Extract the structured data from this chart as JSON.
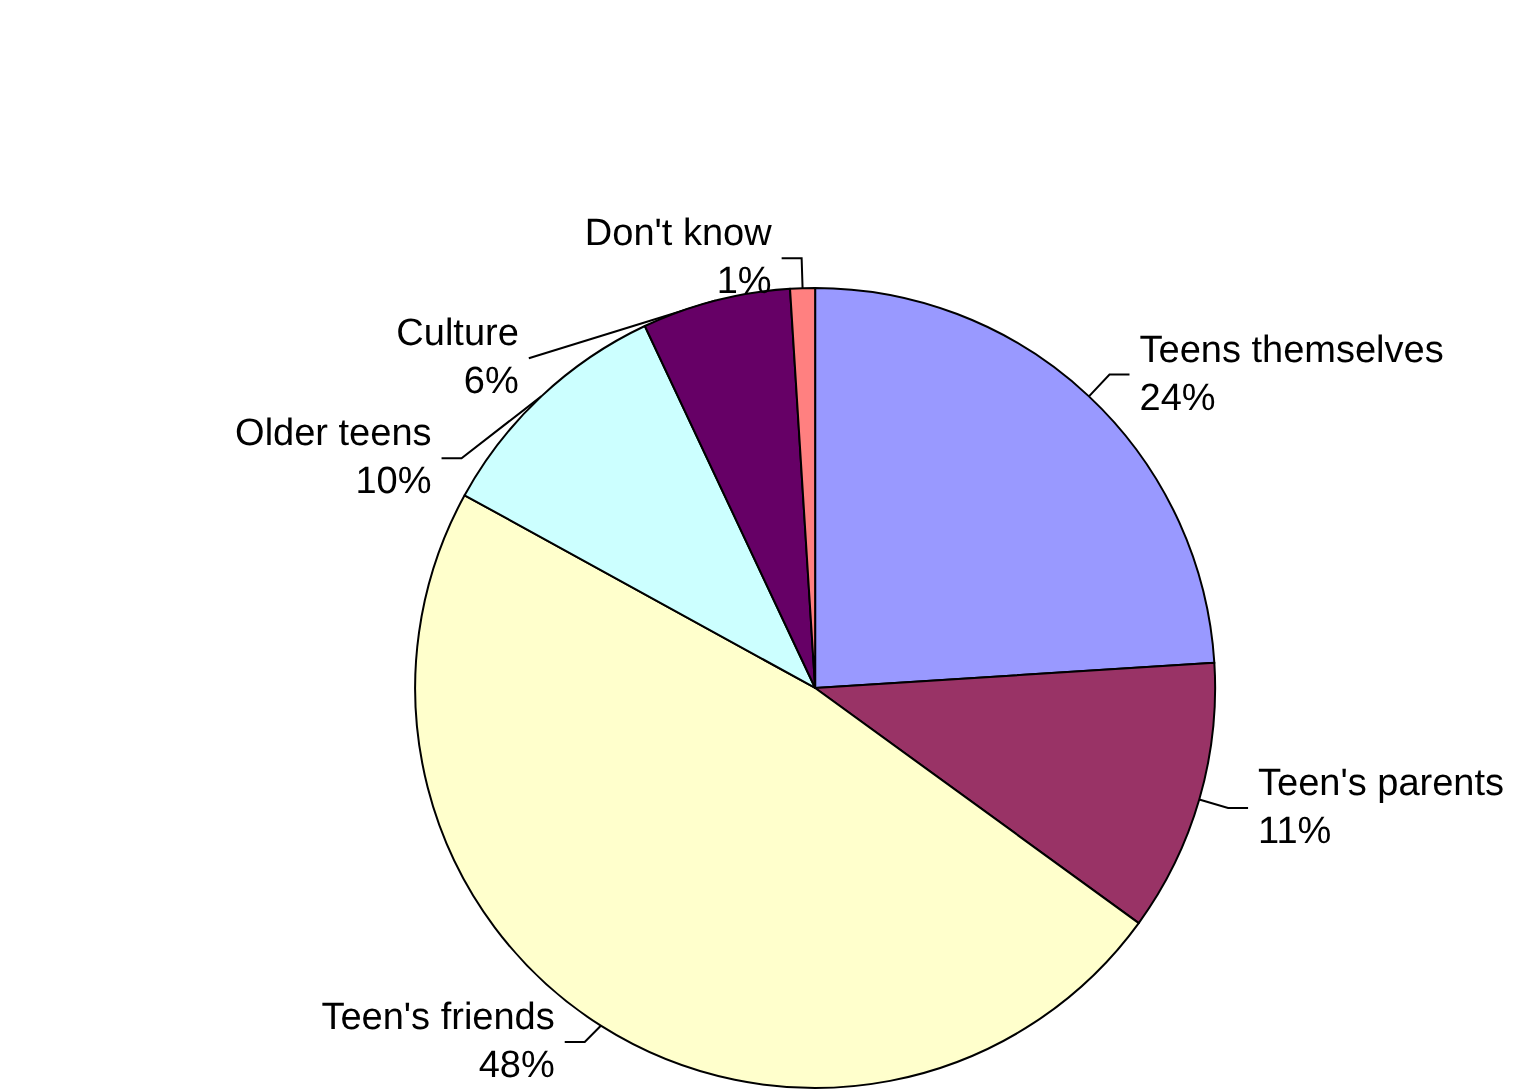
{
  "chart_data": {
    "type": "pie",
    "categories": [
      "Teens themselves",
      "Teen's parents",
      "Teen's friends",
      "Older teens",
      "Culture",
      "Don't know"
    ],
    "values": [
      24,
      11,
      48,
      10,
      6,
      1
    ],
    "colors": [
      "#9999ff",
      "#993366",
      "#ffffcc",
      "#ccffff",
      "#660066",
      "#ff8080"
    ],
    "value_labels": [
      "24%",
      "11%",
      "48%",
      "10%",
      "6%",
      "1%"
    ],
    "legend": false
  }
}
